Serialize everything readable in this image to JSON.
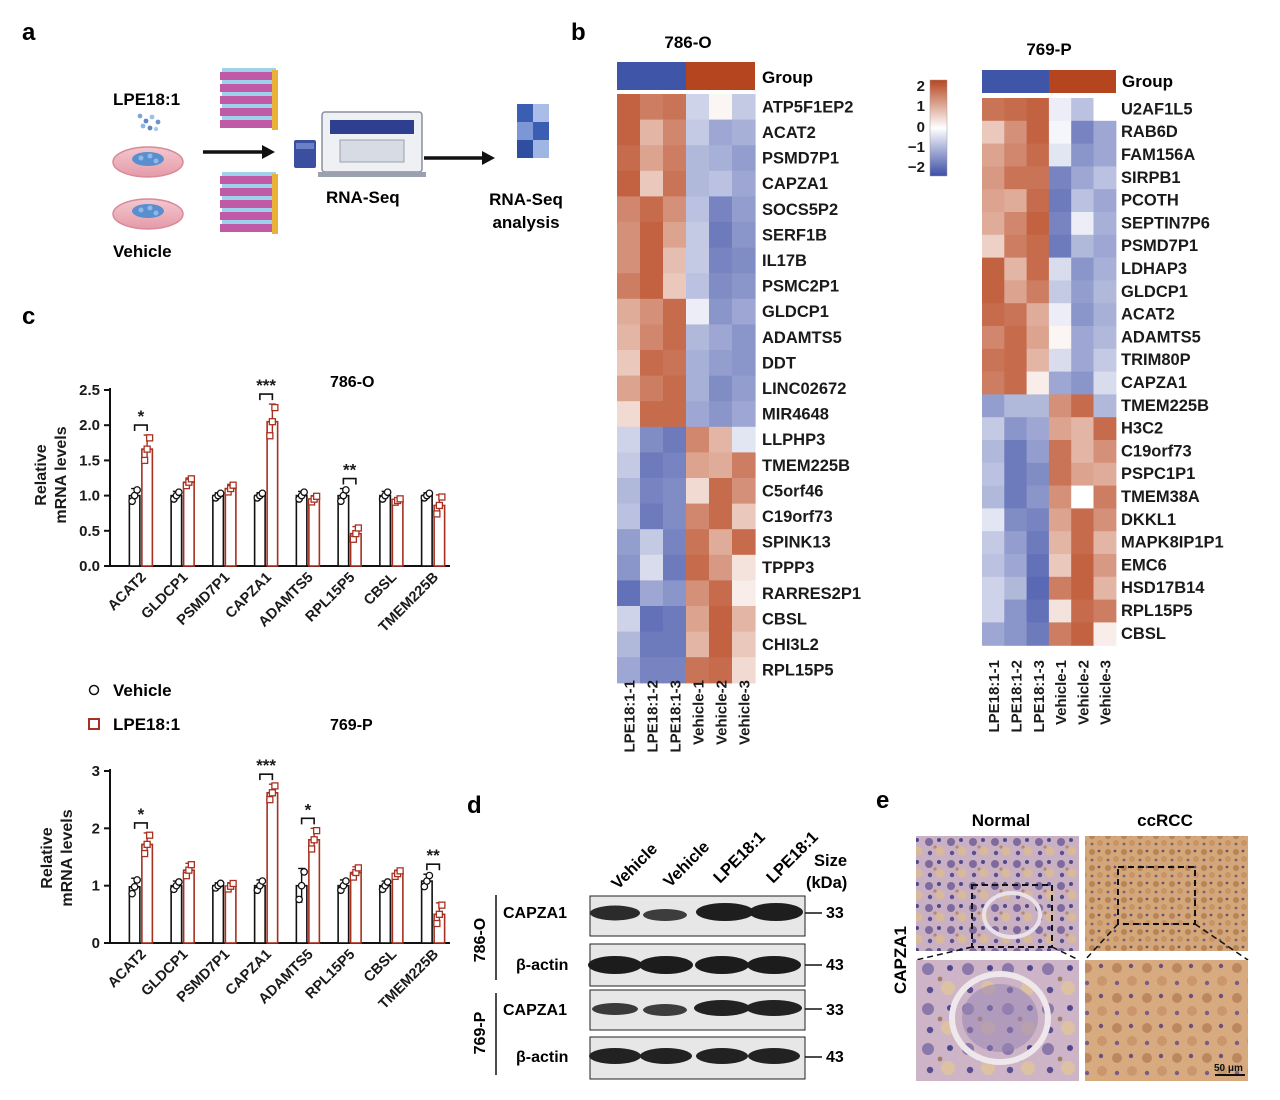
{
  "panels": {
    "a": {
      "label": "a",
      "treatment": "LPE18:1",
      "control": "Vehicle",
      "step_sequencing": "RNA-Seq",
      "step_analysis_line1": "RNA-Seq",
      "step_analysis_line2": "analysis"
    },
    "b": {
      "label": "b",
      "group_label": "Group",
      "legend_ticks": [
        "2",
        "1",
        "0",
        "−1",
        "−2"
      ],
      "columns": [
        "LPE18:1-1",
        "LPE18:1-2",
        "LPE18:1-3",
        "Vehicle-1",
        "Vehicle-2",
        "Vehicle-3"
      ],
      "heatmaps": [
        {
          "title": "786-O",
          "genes": [
            "ATP5F1EP2",
            "ACAT2",
            "PSMD7P1",
            "CAPZA1",
            "SOCS5P2",
            "SERF1B",
            "IL17B",
            "PSMC2P1",
            "GLDCP1",
            "ADAMTS5",
            "DDT",
            "LINC02672",
            "MIR4648",
            "LLPHP3",
            "TMEM225B",
            "C5orf46",
            "C19orf73",
            "SPINK13",
            "TPPP3",
            "RARRES2P1",
            "CBSL",
            "CHI3L2",
            "RPL15P5"
          ],
          "values": [
            [
              1.7,
              1.4,
              1.5,
              -0.5,
              0.1,
              -0.6
            ],
            [
              1.7,
              0.8,
              1.3,
              -0.6,
              -1.0,
              -0.9
            ],
            [
              1.6,
              1.0,
              1.4,
              -0.8,
              -0.9,
              -1.1
            ],
            [
              1.7,
              0.6,
              1.5,
              -0.8,
              -0.7,
              -1.0
            ],
            [
              1.3,
              1.6,
              1.2,
              -0.7,
              -1.4,
              -1.1
            ],
            [
              1.2,
              1.7,
              1.0,
              -0.6,
              -1.5,
              -1.2
            ],
            [
              1.2,
              1.7,
              0.7,
              -0.6,
              -1.4,
              -1.3
            ],
            [
              1.4,
              1.7,
              0.6,
              -0.7,
              -1.3,
              -1.2
            ],
            [
              0.9,
              1.2,
              1.6,
              -0.2,
              -1.2,
              -1.0
            ],
            [
              0.8,
              1.3,
              1.6,
              -0.8,
              -1.0,
              -1.2
            ],
            [
              0.6,
              1.6,
              1.5,
              -0.9,
              -1.1,
              -1.2
            ],
            [
              1.0,
              1.4,
              1.6,
              -0.9,
              -1.3,
              -1.1
            ],
            [
              0.4,
              1.6,
              1.6,
              -1.0,
              -1.2,
              -1.0
            ],
            [
              -0.5,
              -1.3,
              -1.5,
              1.3,
              0.8,
              -0.3
            ],
            [
              -0.6,
              -1.5,
              -1.4,
              1.0,
              0.9,
              1.4
            ],
            [
              -0.8,
              -1.4,
              -1.3,
              0.4,
              1.6,
              1.2
            ],
            [
              -0.7,
              -1.5,
              -1.3,
              1.3,
              1.6,
              0.6
            ],
            [
              -1.1,
              -0.6,
              -1.4,
              1.5,
              0.9,
              1.6
            ],
            [
              -1.2,
              -0.4,
              -1.5,
              1.6,
              1.1,
              0.3
            ],
            [
              -1.6,
              -1.0,
              -1.2,
              1.2,
              1.6,
              0.2
            ],
            [
              -0.5,
              -1.6,
              -1.5,
              1.0,
              1.7,
              0.8
            ],
            [
              -0.8,
              -1.5,
              -1.5,
              0.8,
              1.7,
              0.6
            ],
            [
              -1.0,
              -1.4,
              -1.4,
              1.5,
              1.6,
              0.4
            ]
          ]
        },
        {
          "title": "769-P",
          "genes": [
            "U2AF1L5",
            "RAB6D",
            "FAM156A",
            "SIRPB1",
            "PCOTH",
            "SEPTIN7P6",
            "PSMD7P1",
            "LDHAP3",
            "GLDCP1",
            "ACAT2",
            "ADAMTS5",
            "TRIM80P",
            "CAPZA1",
            "TMEM225B",
            "H3C2",
            "C19orf73",
            "PSPC1P1",
            "TMEM38A",
            "DKKL1",
            "MAPK8IP1P1",
            "EMC6",
            "HSD17B14",
            "RPL15P5",
            "CBSL"
          ],
          "values": [
            [
              1.5,
              1.6,
              1.7,
              -0.2,
              -0.7,
              0.0
            ],
            [
              0.6,
              1.2,
              1.7,
              -0.1,
              -1.4,
              -1.0
            ],
            [
              1.0,
              1.3,
              1.6,
              -0.3,
              -1.2,
              -1.0
            ],
            [
              1.1,
              1.5,
              1.5,
              -1.4,
              -1.0,
              -0.7
            ],
            [
              1.0,
              0.9,
              1.6,
              -1.5,
              -0.7,
              -1.0
            ],
            [
              0.9,
              1.3,
              1.7,
              -1.4,
              -0.2,
              -0.9
            ],
            [
              0.5,
              1.4,
              1.6,
              -1.5,
              -0.8,
              -1.0
            ],
            [
              1.7,
              0.8,
              1.6,
              -0.4,
              -1.2,
              -0.9
            ],
            [
              1.7,
              1.0,
              1.4,
              -0.6,
              -1.1,
              -0.8
            ],
            [
              1.6,
              1.5,
              0.9,
              -0.2,
              -1.2,
              -0.9
            ],
            [
              1.3,
              1.6,
              1.0,
              0.1,
              -1.0,
              -0.8
            ],
            [
              1.5,
              1.6,
              0.8,
              -0.4,
              -1.0,
              -0.6
            ],
            [
              1.4,
              1.6,
              0.2,
              -1.0,
              -1.2,
              -0.4
            ],
            [
              -1.1,
              -0.8,
              -0.8,
              1.2,
              1.6,
              -0.8
            ],
            [
              -0.6,
              -1.2,
              -1.0,
              1.0,
              0.8,
              1.6
            ],
            [
              -0.8,
              -1.5,
              -1.1,
              1.5,
              0.8,
              1.2
            ],
            [
              -0.7,
              -1.5,
              -1.3,
              1.5,
              1.0,
              0.9
            ],
            [
              -0.8,
              -1.5,
              -1.2,
              1.2,
              0.0,
              1.4
            ],
            [
              -0.3,
              -1.3,
              -1.4,
              1.0,
              1.6,
              1.2
            ],
            [
              -0.6,
              -1.1,
              -1.5,
              0.8,
              1.6,
              0.8
            ],
            [
              -0.7,
              -1.0,
              -1.6,
              0.6,
              1.7,
              1.1
            ],
            [
              -0.5,
              -0.8,
              -1.7,
              1.4,
              1.7,
              0.8
            ],
            [
              -0.5,
              -1.2,
              -1.6,
              0.3,
              1.6,
              1.4
            ],
            [
              -1.0,
              -1.2,
              -1.5,
              1.4,
              1.7,
              0.2
            ]
          ]
        }
      ]
    },
    "c": {
      "label": "c",
      "legend": {
        "vehicle": "Vehicle",
        "treatment": "LPE18:1"
      }
    },
    "d": {
      "label": "d",
      "lanes": [
        "Vehicle",
        "Vehicle",
        "LPE18:1",
        "LPE18:1"
      ],
      "size_header_line1": "Size",
      "size_header_line2": "(kDa)",
      "blots": [
        {
          "cell": "786-O",
          "protein": "CAPZA1",
          "size": "33"
        },
        {
          "cell": "786-O",
          "protein": "β-actin",
          "size": "43"
        },
        {
          "cell": "769-P",
          "protein": "CAPZA1",
          "size": "33"
        },
        {
          "cell": "769-P",
          "protein": "β-actin",
          "size": "43"
        }
      ]
    },
    "e": {
      "label": "e",
      "col_normal": "Normal",
      "col_tumor": "ccRCC",
      "row_label": "CAPZA1",
      "scale_bar": "50 μm"
    }
  },
  "colors": {
    "high": "#b8461f",
    "mid": "#ffffff",
    "low": "#3c4fa6",
    "vehicle_bar": "#ffffff",
    "treatment_bar": "#a83020",
    "group_treatment": "#3f55a8",
    "group_vehicle": "#b5451f"
  },
  "chart_data": [
    {
      "type": "bar",
      "title": "786-O",
      "ylabel": "Relative mRNA levels",
      "ylim": [
        0,
        2.5
      ],
      "yticks": [
        "0.0",
        "0.5",
        "1.0",
        "1.5",
        "2.0",
        "2.5"
      ],
      "categories": [
        "ACAT2",
        "GLDCP1",
        "PSMD7P1",
        "CAPZA1",
        "ADAMTS5",
        "RPL15P5",
        "CBSL",
        "TMEM225B"
      ],
      "series": [
        {
          "name": "Vehicle",
          "values": [
            1.0,
            1.0,
            1.0,
            1.0,
            1.0,
            1.0,
            1.0,
            1.0
          ],
          "errors": [
            0.1,
            0.06,
            0.04,
            0.04,
            0.06,
            0.1,
            0.06,
            0.04
          ]
        },
        {
          "name": "LPE18:1",
          "values": [
            1.66,
            1.19,
            1.1,
            2.05,
            0.95,
            0.46,
            0.93,
            0.86
          ],
          "errors": [
            0.2,
            0.06,
            0.06,
            0.25,
            0.05,
            0.1,
            0.03,
            0.15
          ]
        }
      ],
      "significance": [
        {
          "category": "ACAT2",
          "text": "*"
        },
        {
          "category": "CAPZA1",
          "text": "***"
        },
        {
          "category": "RPL15P5",
          "text": "**"
        }
      ]
    },
    {
      "type": "bar",
      "title": "769-P",
      "ylabel": "Relative mRNA levels",
      "ylim": [
        0,
        3
      ],
      "yticks": [
        "0",
        "1",
        "2",
        "3"
      ],
      "categories": [
        "ACAT2",
        "GLDCP1",
        "PSMD7P1",
        "CAPZA1",
        "ADAMTS5",
        "RPL15P5",
        "CBSL",
        "TMEM225B"
      ],
      "series": [
        {
          "name": "Vehicle",
          "values": [
            0.98,
            1.0,
            1.0,
            1.0,
            1.0,
            1.0,
            1.0,
            1.08
          ],
          "errors": [
            0.15,
            0.08,
            0.05,
            0.1,
            0.3,
            0.1,
            0.08,
            0.12
          ]
        },
        {
          "name": "LPE18:1",
          "values": [
            1.72,
            1.27,
            0.99,
            2.62,
            1.8,
            1.23,
            1.21,
            0.5
          ],
          "errors": [
            0.2,
            0.12,
            0.06,
            0.15,
            0.2,
            0.1,
            0.06,
            0.2
          ]
        }
      ],
      "significance": [
        {
          "category": "ACAT2",
          "text": "*"
        },
        {
          "category": "CAPZA1",
          "text": "***"
        },
        {
          "category": "ADAMTS5",
          "text": "*"
        },
        {
          "category": "TMEM225B",
          "text": "**"
        }
      ]
    }
  ]
}
